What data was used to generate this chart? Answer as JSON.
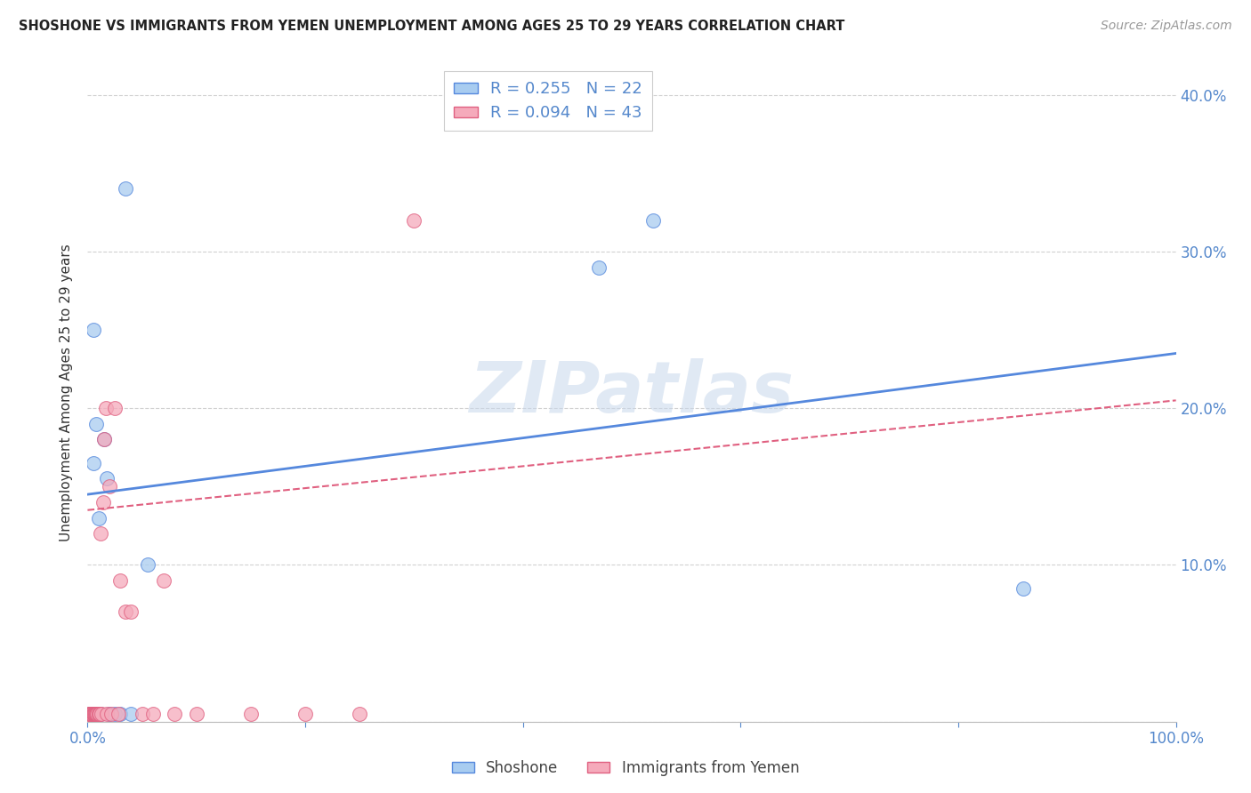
{
  "title": "SHOSHONE VS IMMIGRANTS FROM YEMEN UNEMPLOYMENT AMONG AGES 25 TO 29 YEARS CORRELATION CHART",
  "source": "Source: ZipAtlas.com",
  "ylabel": "Unemployment Among Ages 25 to 29 years",
  "xlim": [
    0,
    1.0
  ],
  "ylim": [
    0,
    0.42
  ],
  "shoshone_color": "#A8CCF0",
  "yemen_color": "#F5AABB",
  "shoshone_R": 0.255,
  "shoshone_N": 22,
  "yemen_R": 0.094,
  "yemen_N": 43,
  "shoshone_line_color": "#5588DD",
  "yemen_line_color": "#E06080",
  "watermark": "ZIPatlas",
  "shoshone_x": [
    0.002,
    0.003,
    0.004,
    0.005,
    0.005,
    0.006,
    0.007,
    0.008,
    0.009,
    0.01,
    0.012,
    0.015,
    0.018,
    0.02,
    0.025,
    0.03,
    0.035,
    0.04,
    0.055,
    0.47,
    0.52,
    0.86
  ],
  "shoshone_y": [
    0.005,
    0.005,
    0.005,
    0.165,
    0.25,
    0.005,
    0.005,
    0.19,
    0.005,
    0.13,
    0.005,
    0.18,
    0.155,
    0.005,
    0.005,
    0.005,
    0.34,
    0.005,
    0.1,
    0.29,
    0.32,
    0.085
  ],
  "yemen_x": [
    0.001,
    0.002,
    0.002,
    0.003,
    0.003,
    0.004,
    0.004,
    0.005,
    0.005,
    0.005,
    0.006,
    0.006,
    0.007,
    0.007,
    0.008,
    0.008,
    0.009,
    0.009,
    0.01,
    0.01,
    0.011,
    0.012,
    0.013,
    0.014,
    0.015,
    0.017,
    0.018,
    0.02,
    0.022,
    0.025,
    0.028,
    0.03,
    0.035,
    0.04,
    0.05,
    0.06,
    0.07,
    0.08,
    0.1,
    0.15,
    0.2,
    0.25,
    0.3
  ],
  "yemen_y": [
    0.005,
    0.005,
    0.005,
    0.005,
    0.005,
    0.005,
    0.005,
    0.005,
    0.005,
    0.005,
    0.005,
    0.005,
    0.005,
    0.005,
    0.005,
    0.005,
    0.005,
    0.005,
    0.005,
    0.005,
    0.005,
    0.12,
    0.005,
    0.14,
    0.18,
    0.2,
    0.005,
    0.15,
    0.005,
    0.2,
    0.005,
    0.09,
    0.07,
    0.07,
    0.005,
    0.005,
    0.09,
    0.005,
    0.005,
    0.005,
    0.005,
    0.005,
    0.32
  ],
  "shoshone_line_x0": 0.0,
  "shoshone_line_y0": 0.145,
  "shoshone_line_x1": 1.0,
  "shoshone_line_y1": 0.235,
  "yemen_line_x0": 0.0,
  "yemen_line_y0": 0.135,
  "yemen_line_x1": 1.0,
  "yemen_line_y1": 0.205
}
